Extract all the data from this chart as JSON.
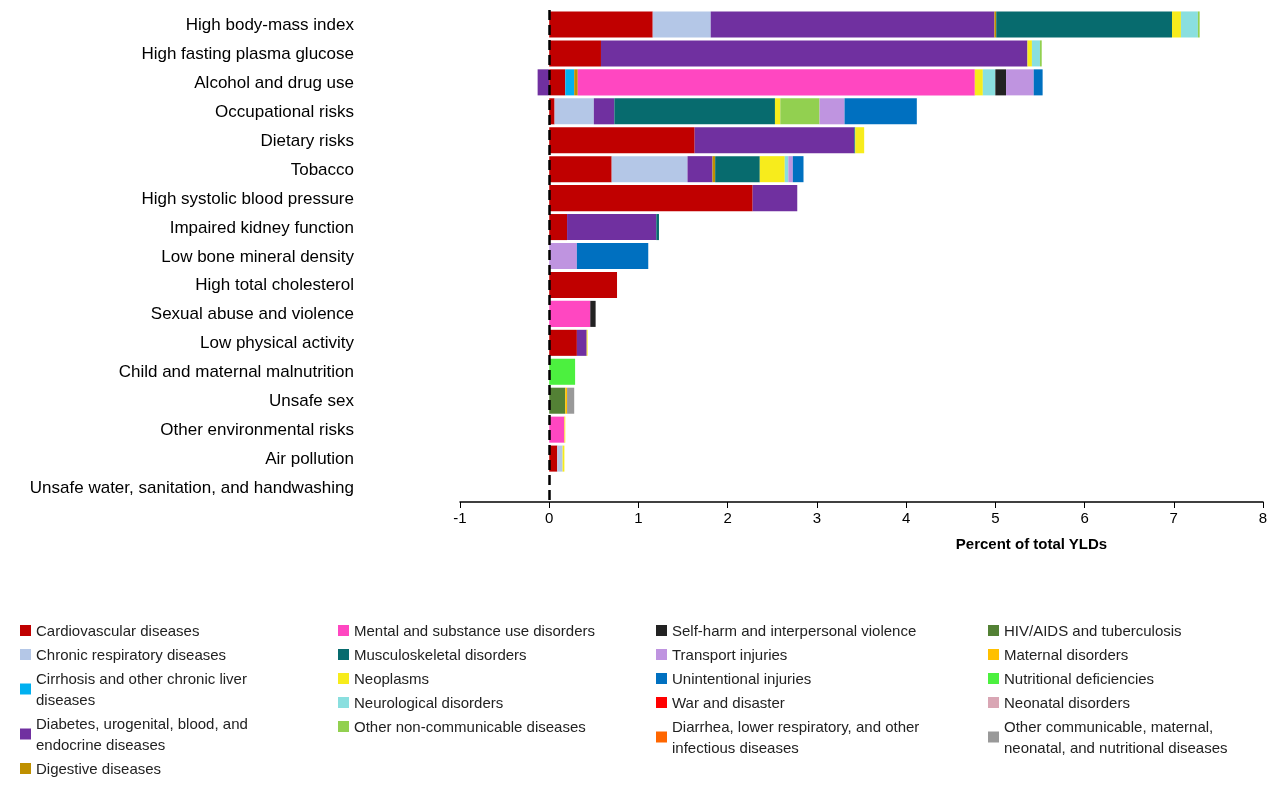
{
  "chart_data": {
    "type": "bar",
    "orientation": "horizontal",
    "stacked": true,
    "xlabel": "Percent of total YLDs",
    "xlim": [
      -1,
      8
    ],
    "xticks": [
      -1,
      0,
      1,
      2,
      3,
      4,
      5,
      6,
      7,
      8
    ],
    "grid": false,
    "legend": "bottom",
    "categories": [
      "High body-mass index",
      "High fasting plasma glucose",
      "Alcohol and drug use",
      "Occupational risks",
      "Dietary risks",
      "Tobacco",
      "High systolic blood pressure",
      "Impaired kidney function",
      "Low bone mineral density",
      "High total cholesterol",
      "Sexual abuse and violence",
      "Low physical activity",
      "Child and maternal malnutrition",
      "Unsafe sex",
      "Other environmental risks",
      "Air pollution",
      "Unsafe water, sanitation, and handwashing"
    ],
    "ref_lines": [
      {
        "axis": "x",
        "value": 0,
        "color": "#000000",
        "line_style": "dashed"
      }
    ],
    "series": [
      {
        "name": "Cardiovascular diseases",
        "color": "#c00000",
        "values": [
          1.16,
          0.58,
          0.18,
          0.06,
          1.63,
          0.7,
          2.28,
          0.2,
          null,
          0.76,
          null,
          0.31,
          null,
          null,
          null,
          0.09,
          null
        ]
      },
      {
        "name": "Chronic respiratory diseases",
        "color": "#b4c7e7",
        "values": [
          0.65,
          null,
          null,
          0.44,
          null,
          0.85,
          null,
          null,
          null,
          null,
          null,
          null,
          null,
          null,
          null,
          0.06,
          null
        ]
      },
      {
        "name": "Cirrhosis and other chronic liver diseases",
        "color": "#00b0f0",
        "values": [
          null,
          null,
          0.1,
          null,
          null,
          null,
          null,
          null,
          null,
          null,
          null,
          null,
          null,
          null,
          null,
          null,
          null
        ]
      },
      {
        "name": "Diabetes, urogenital, blood, and endocrine diseases",
        "color": "#7030a0",
        "values": [
          3.18,
          4.78,
          -0.13,
          0.23,
          1.79,
          0.28,
          0.5,
          1.0,
          null,
          null,
          null,
          0.11,
          null,
          null,
          null,
          null,
          null
        ]
      },
      {
        "name": "Digestive diseases",
        "color": "#bf9000",
        "values": [
          0.02,
          null,
          0.04,
          null,
          null,
          0.03,
          null,
          null,
          null,
          null,
          null,
          null,
          null,
          null,
          null,
          null,
          null
        ]
      },
      {
        "name": "Mental and substance use disorders",
        "color": "#ff47c1",
        "values": [
          null,
          null,
          4.45,
          null,
          null,
          null,
          null,
          null,
          null,
          null,
          0.46,
          null,
          null,
          null,
          0.17,
          null,
          null
        ]
      },
      {
        "name": "Musculoskeletal disorders",
        "color": "#076b6e",
        "values": [
          1.97,
          null,
          null,
          1.8,
          0.01,
          0.5,
          null,
          0.03,
          null,
          null,
          null,
          null,
          null,
          null,
          null,
          null,
          null
        ]
      },
      {
        "name": "Neoplasms",
        "color": "#f7ec1c",
        "values": [
          0.1,
          0.05,
          0.09,
          0.06,
          0.1,
          0.28,
          null,
          null,
          null,
          null,
          null,
          0.01,
          null,
          null,
          0.01,
          0.02,
          null
        ]
      },
      {
        "name": "Neurological disorders",
        "color": "#8adfdf",
        "values": [
          0.19,
          0.09,
          0.14,
          null,
          null,
          0.04,
          null,
          null,
          null,
          null,
          null,
          null,
          null,
          null,
          null,
          null,
          null
        ]
      },
      {
        "name": "Other non-communicable diseases",
        "color": "#92d050",
        "values": [
          0.02,
          0.02,
          null,
          0.44,
          null,
          null,
          null,
          null,
          null,
          null,
          null,
          null,
          null,
          null,
          null,
          null,
          null
        ]
      },
      {
        "name": "Self-harm and interpersonal violence",
        "color": "#222222",
        "values": [
          null,
          null,
          0.12,
          null,
          null,
          null,
          null,
          null,
          null,
          null,
          0.06,
          null,
          null,
          null,
          null,
          null,
          null
        ]
      },
      {
        "name": "Transport injuries",
        "color": "#bf94e0",
        "values": [
          null,
          null,
          0.31,
          0.28,
          null,
          0.05,
          null,
          null,
          0.31,
          null,
          null,
          null,
          null,
          null,
          null,
          null,
          null
        ]
      },
      {
        "name": "Unintentional injuries",
        "color": "#0070c0",
        "values": [
          null,
          null,
          0.1,
          0.81,
          null,
          0.12,
          null,
          null,
          0.8,
          null,
          null,
          null,
          null,
          null,
          null,
          null,
          null
        ]
      },
      {
        "name": "War and disaster",
        "color": "#ff0000",
        "values": [
          null,
          null,
          null,
          null,
          null,
          null,
          null,
          null,
          null,
          null,
          null,
          null,
          null,
          null,
          null,
          null,
          null
        ]
      },
      {
        "name": "Diarrhea, lower respiratory, and other infectious diseases",
        "color": "#ff6600",
        "values": [
          null,
          null,
          null,
          null,
          null,
          null,
          null,
          null,
          null,
          null,
          null,
          null,
          null,
          null,
          null,
          null,
          null
        ]
      },
      {
        "name": "HIV/AIDS and tuberculosis",
        "color": "#538135",
        "values": [
          null,
          null,
          null,
          null,
          null,
          null,
          null,
          null,
          null,
          null,
          null,
          null,
          null,
          0.18,
          null,
          null,
          null
        ]
      },
      {
        "name": "Maternal disorders",
        "color": "#ffc000",
        "values": [
          null,
          null,
          null,
          null,
          null,
          null,
          null,
          null,
          null,
          null,
          null,
          null,
          null,
          0.02,
          null,
          null,
          null
        ]
      },
      {
        "name": "Nutritional deficiencies",
        "color": "#4cf03f",
        "values": [
          null,
          null,
          null,
          null,
          null,
          null,
          null,
          null,
          null,
          null,
          null,
          null,
          0.29,
          null,
          null,
          null,
          null
        ]
      },
      {
        "name": "Neonatal disorders",
        "color": "#d9a6b4",
        "values": [
          null,
          null,
          null,
          null,
          null,
          null,
          null,
          null,
          null,
          null,
          null,
          null,
          null,
          null,
          null,
          null,
          null
        ]
      },
      {
        "name": "Other communicable, maternal, neonatal, and nutritional diseases",
        "color": "#999999",
        "values": [
          null,
          null,
          null,
          null,
          null,
          null,
          null,
          null,
          null,
          null,
          null,
          null,
          null,
          0.08,
          null,
          null,
          null
        ]
      }
    ]
  }
}
